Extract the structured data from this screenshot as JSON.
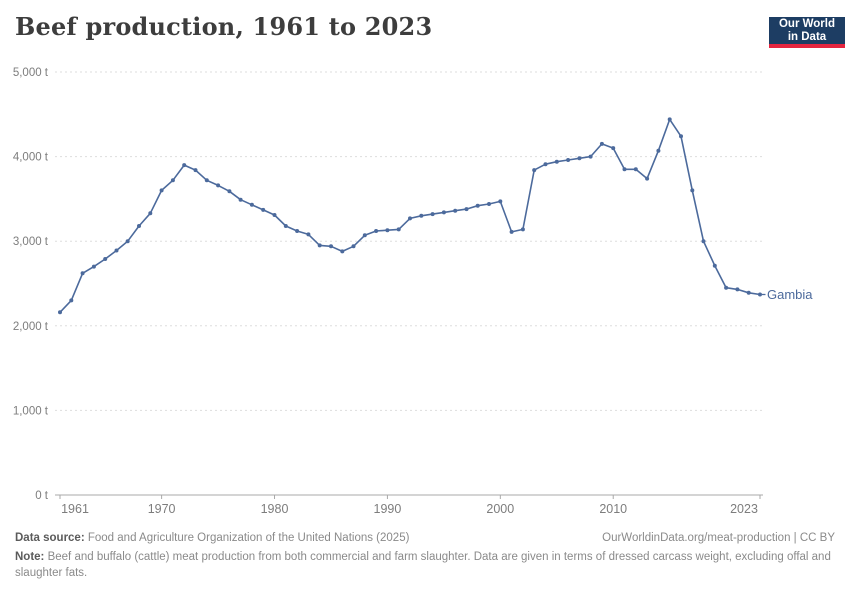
{
  "header": {
    "title": "Beef production, 1961 to 2023",
    "logo": {
      "line1": "Our World",
      "line2": "in Data"
    }
  },
  "colors": {
    "line": "#4C6A9C",
    "entity_label": "#4C6A9C",
    "grid": "#dddddd",
    "axis": "#a8a8a8",
    "tick_text": "#7d7d7d",
    "title_text": "#3d3d3d",
    "footer_text": "#8a8a8a",
    "footer_label": "#5b5b5b",
    "logo_bg": "#1d3d63",
    "logo_red": "#e5253f",
    "logo_text": "#ffffff",
    "background": "#ffffff"
  },
  "chart_data": {
    "type": "line",
    "title": "Beef production, 1961 to 2023",
    "xlabel": "",
    "ylabel": "tonnes",
    "xlim": [
      1961,
      2023
    ],
    "ylim": [
      0,
      5000
    ],
    "grid": "horizontal-dashed",
    "legend": "entity-label-at-line-end",
    "series": [
      {
        "name": "Gambia",
        "x": [
          1961,
          1962,
          1963,
          1964,
          1965,
          1966,
          1967,
          1968,
          1969,
          1970,
          1971,
          1972,
          1973,
          1974,
          1975,
          1976,
          1977,
          1978,
          1979,
          1980,
          1981,
          1982,
          1983,
          1984,
          1985,
          1986,
          1987,
          1988,
          1989,
          1990,
          1991,
          1992,
          1993,
          1994,
          1995,
          1996,
          1997,
          1998,
          1999,
          2000,
          2001,
          2002,
          2003,
          2004,
          2005,
          2006,
          2007,
          2008,
          2009,
          2010,
          2011,
          2012,
          2013,
          2014,
          2015,
          2016,
          2017,
          2018,
          2019,
          2020,
          2021,
          2022,
          2023
        ],
        "values": [
          2160,
          2300,
          2620,
          2700,
          2790,
          2890,
          3000,
          3180,
          3330,
          3600,
          3720,
          3900,
          3840,
          3720,
          3660,
          3590,
          3490,
          3430,
          3370,
          3310,
          3180,
          3120,
          3080,
          2950,
          2940,
          2880,
          2940,
          3070,
          3120,
          3130,
          3140,
          3270,
          3300,
          3320,
          3340,
          3360,
          3380,
          3420,
          3440,
          3470,
          3110,
          3140,
          3840,
          3910,
          3940,
          3960,
          3980,
          4000,
          4150,
          4100,
          3850,
          3850,
          3740,
          4070,
          4440,
          4240,
          3600,
          3000,
          2710,
          2450,
          2430,
          2390,
          2370
        ]
      }
    ],
    "y_ticks": [
      {
        "value": 0,
        "label": "0 t"
      },
      {
        "value": 1000,
        "label": "1,000 t"
      },
      {
        "value": 2000,
        "label": "2,000 t"
      },
      {
        "value": 3000,
        "label": "3,000 t"
      },
      {
        "value": 4000,
        "label": "4,000 t"
      },
      {
        "value": 5000,
        "label": "5,000 t"
      }
    ],
    "x_ticks": [
      {
        "value": 1961,
        "label": "1961"
      },
      {
        "value": 1970,
        "label": "1970"
      },
      {
        "value": 1980,
        "label": "1980"
      },
      {
        "value": 1990,
        "label": "1990"
      },
      {
        "value": 2000,
        "label": "2000"
      },
      {
        "value": 2010,
        "label": "2010"
      },
      {
        "value": 2023,
        "label": "2023"
      }
    ]
  },
  "footer": {
    "source_label": "Data source:",
    "source_text": " Food and Agriculture Organization of the United Nations (2025)",
    "link_text": "OurWorldinData.org/meat-production | CC BY",
    "note_label": "Note:",
    "note_text": " Beef and buffalo (cattle) meat production from both commercial and farm slaughter. Data are given in terms of dressed carcass weight, excluding offal and slaughter fats."
  }
}
